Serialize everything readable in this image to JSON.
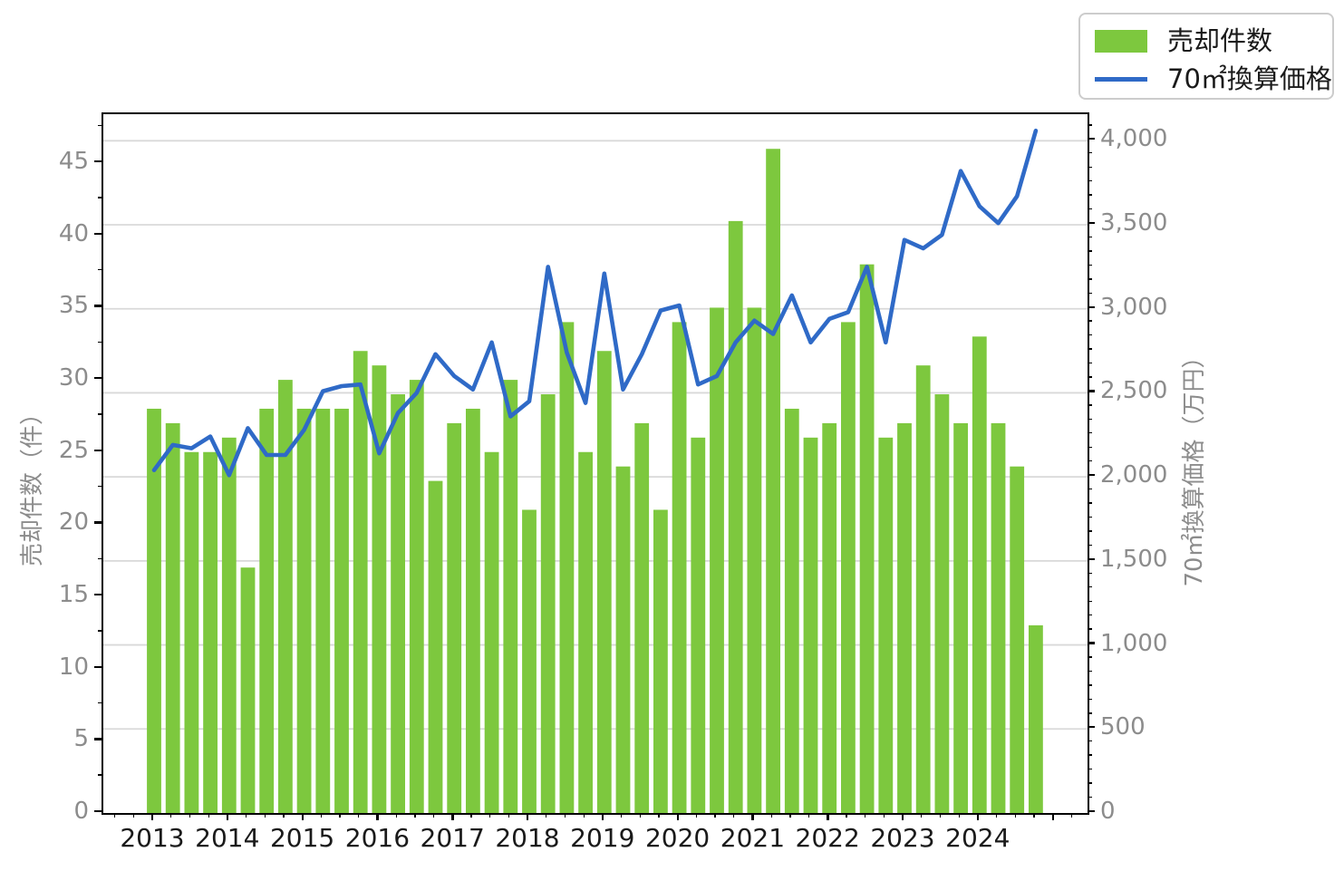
{
  "chart_data": {
    "type": "bar+line dual-axis",
    "categories": [
      "2013Q1",
      "2013Q2",
      "2013Q3",
      "2013Q4",
      "2014Q1",
      "2014Q2",
      "2014Q3",
      "2014Q4",
      "2015Q1",
      "2015Q2",
      "2015Q3",
      "2015Q4",
      "2016Q1",
      "2016Q2",
      "2016Q3",
      "2016Q4",
      "2017Q1",
      "2017Q2",
      "2017Q3",
      "2017Q4",
      "2018Q1",
      "2018Q2",
      "2018Q3",
      "2018Q4",
      "2019Q1",
      "2019Q2",
      "2019Q3",
      "2019Q4",
      "2020Q1",
      "2020Q2",
      "2020Q3",
      "2020Q4",
      "2021Q1",
      "2021Q2",
      "2021Q3",
      "2021Q4",
      "2022Q1",
      "2022Q2",
      "2022Q3",
      "2022Q4",
      "2023Q1",
      "2023Q2",
      "2023Q3",
      "2023Q4",
      "2024Q1",
      "2024Q2",
      "2024Q3",
      "2024Q4"
    ],
    "series": [
      {
        "name": "売却件数",
        "type": "bar",
        "axis": "left",
        "color": "#7dc83e",
        "values": [
          28,
          27,
          25,
          25,
          26,
          17,
          28,
          30,
          28,
          28,
          28,
          32,
          31,
          29,
          30,
          23,
          27,
          28,
          25,
          30,
          21,
          29,
          34,
          25,
          32,
          24,
          27,
          21,
          34,
          26,
          35,
          41,
          35,
          46,
          28,
          26,
          27,
          34,
          38,
          26,
          27,
          31,
          29,
          27,
          33,
          27,
          24,
          13
        ]
      },
      {
        "name": "70㎡換算価格",
        "type": "line",
        "axis": "right",
        "color": "#2f6ac7",
        "values": [
          2040,
          2190,
          2170,
          2240,
          2010,
          2290,
          2130,
          2130,
          2280,
          2510,
          2540,
          2550,
          2140,
          2380,
          2500,
          2730,
          2600,
          2520,
          2800,
          2360,
          2450,
          3250,
          2740,
          2440,
          3210,
          2520,
          2730,
          2990,
          3020,
          2550,
          2600,
          2800,
          2930,
          2850,
          3080,
          2800,
          2940,
          2980,
          3250,
          2800,
          3410,
          3360,
          3440,
          3820,
          3610,
          3510,
          3670,
          4060
        ]
      }
    ],
    "x_axis": {
      "tick_labels": [
        "2013",
        "2014",
        "2015",
        "2016",
        "2017",
        "2018",
        "2019",
        "2020",
        "2021",
        "2022",
        "2023",
        "2024"
      ]
    },
    "left_axis": {
      "label": "売却件数（件）",
      "tick_labels": [
        "0",
        "5",
        "10",
        "15",
        "20",
        "25",
        "30",
        "35",
        "40",
        "45"
      ],
      "tick_values": [
        0,
        5,
        10,
        15,
        20,
        25,
        30,
        35,
        40,
        45
      ],
      "range": [
        0,
        48.4
      ],
      "minor_step": 2.5
    },
    "right_axis": {
      "label": "70㎡換算価格（万円）",
      "tick_labels": [
        "0",
        "500",
        "1,000",
        "1,500",
        "2,000",
        "2,500",
        "3,000",
        "3,500",
        "4,000"
      ],
      "tick_values": [
        0,
        500,
        1000,
        1500,
        2000,
        2500,
        3000,
        3500,
        4000
      ],
      "range": [
        0,
        4158
      ],
      "minor_divisions_per_interval": 6
    },
    "grid": "horizontal gridlines at right-axis 500 intervals",
    "legend_position": "outside top-right"
  },
  "legend": {
    "items": [
      {
        "label": "売却件数",
        "swatch": "green-rect"
      },
      {
        "label": "70㎡換算価格",
        "swatch": "blue-line"
      }
    ]
  },
  "colors": {
    "bar_green": "#7dc83e",
    "line_blue": "#2f6ac7",
    "grid_gray": "#d9d9d9",
    "y_tick_label_gray": "#8c8c8c",
    "x_tick_label_black": "#1a1a1a",
    "legend_border": "#cccccc",
    "spine_black": "#000000"
  }
}
